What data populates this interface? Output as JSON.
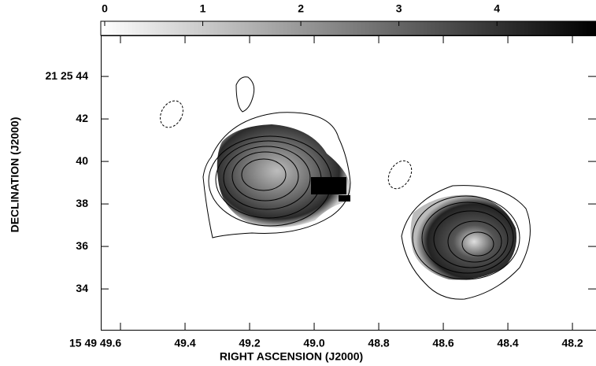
{
  "chart_data": {
    "type": "contour-image",
    "xlabel": "RIGHT ASCENSION (J2000)",
    "ylabel": "DECLINATION (J2000)",
    "xlim": [
      49.661,
      48.127
    ],
    "xticks": [
      {
        "value": 49.6,
        "label": "15 49 49.6"
      },
      {
        "value": 49.4,
        "label": "49.4"
      },
      {
        "value": 49.2,
        "label": "49.2"
      },
      {
        "value": 49.0,
        "label": "49.0"
      },
      {
        "value": 48.8,
        "label": "48.8"
      },
      {
        "value": 48.6,
        "label": "48.6"
      },
      {
        "value": 48.4,
        "label": "48.4"
      },
      {
        "value": 48.2,
        "label": "48.2"
      }
    ],
    "ylim": [
      32.04,
      45.93
    ],
    "yticks": [
      {
        "value": 44,
        "label": "21 25 44"
      },
      42,
      40,
      38,
      36,
      34
    ],
    "colorbar": {
      "lim": [
        -0.04,
        5.01
      ],
      "ticks": [
        0,
        1,
        2,
        3,
        4
      ],
      "colors": [
        "#ffffff",
        "#000000"
      ]
    }
  }
}
